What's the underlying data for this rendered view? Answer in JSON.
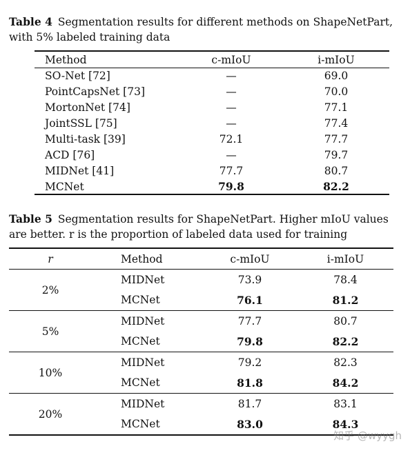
{
  "table4": {
    "label": "Table 4",
    "caption": "Segmentation results for different methods on ShapeNetPart, with 5% labeled training data",
    "headers": [
      "Method",
      "c-mIoU",
      "i-mIoU"
    ],
    "rows": [
      {
        "method": "SO-Net [72]",
        "c": "—",
        "i": "69.0"
      },
      {
        "method": "PointCapsNet [73]",
        "c": "—",
        "i": "70.0"
      },
      {
        "method": "MortonNet [74]",
        "c": "—",
        "i": "77.1"
      },
      {
        "method": "JointSSL [75]",
        "c": "—",
        "i": "77.4"
      },
      {
        "method": "Multi-task [39]",
        "c": "72.1",
        "i": "77.7"
      },
      {
        "method": "ACD [76]",
        "c": "—",
        "i": "79.7"
      },
      {
        "method": "MIDNet [41]",
        "c": "77.7",
        "i": "80.7"
      },
      {
        "method": "MCNet",
        "c": "79.8",
        "i": "82.2",
        "bold": true
      }
    ]
  },
  "table5": {
    "label": "Table 5",
    "caption": "Segmentation results for ShapeNetPart. Higher mIoU values are better. r is the proportion of labeled data used for training",
    "headers": [
      "r",
      "Method",
      "c-mIoU",
      "i-mIoU"
    ],
    "groups": [
      {
        "r": "2%",
        "rows": [
          {
            "method": "MIDNet",
            "c": "73.9",
            "i": "78.4"
          },
          {
            "method": "MCNet",
            "c": "76.1",
            "i": "81.2",
            "bold": true
          }
        ]
      },
      {
        "r": "5%",
        "rows": [
          {
            "method": "MIDNet",
            "c": "77.7",
            "i": "80.7"
          },
          {
            "method": "MCNet",
            "c": "79.8",
            "i": "82.2",
            "bold": true
          }
        ]
      },
      {
        "r": "10%",
        "rows": [
          {
            "method": "MIDNet",
            "c": "79.2",
            "i": "82.3"
          },
          {
            "method": "MCNet",
            "c": "81.8",
            "i": "84.2",
            "bold": true
          }
        ]
      },
      {
        "r": "20%",
        "rows": [
          {
            "method": "MIDNet",
            "c": "81.7",
            "i": "83.1"
          },
          {
            "method": "MCNet",
            "c": "83.0",
            "i": "84.3",
            "bold": true
          }
        ]
      }
    ]
  },
  "watermark": "知乎 @wyygh"
}
